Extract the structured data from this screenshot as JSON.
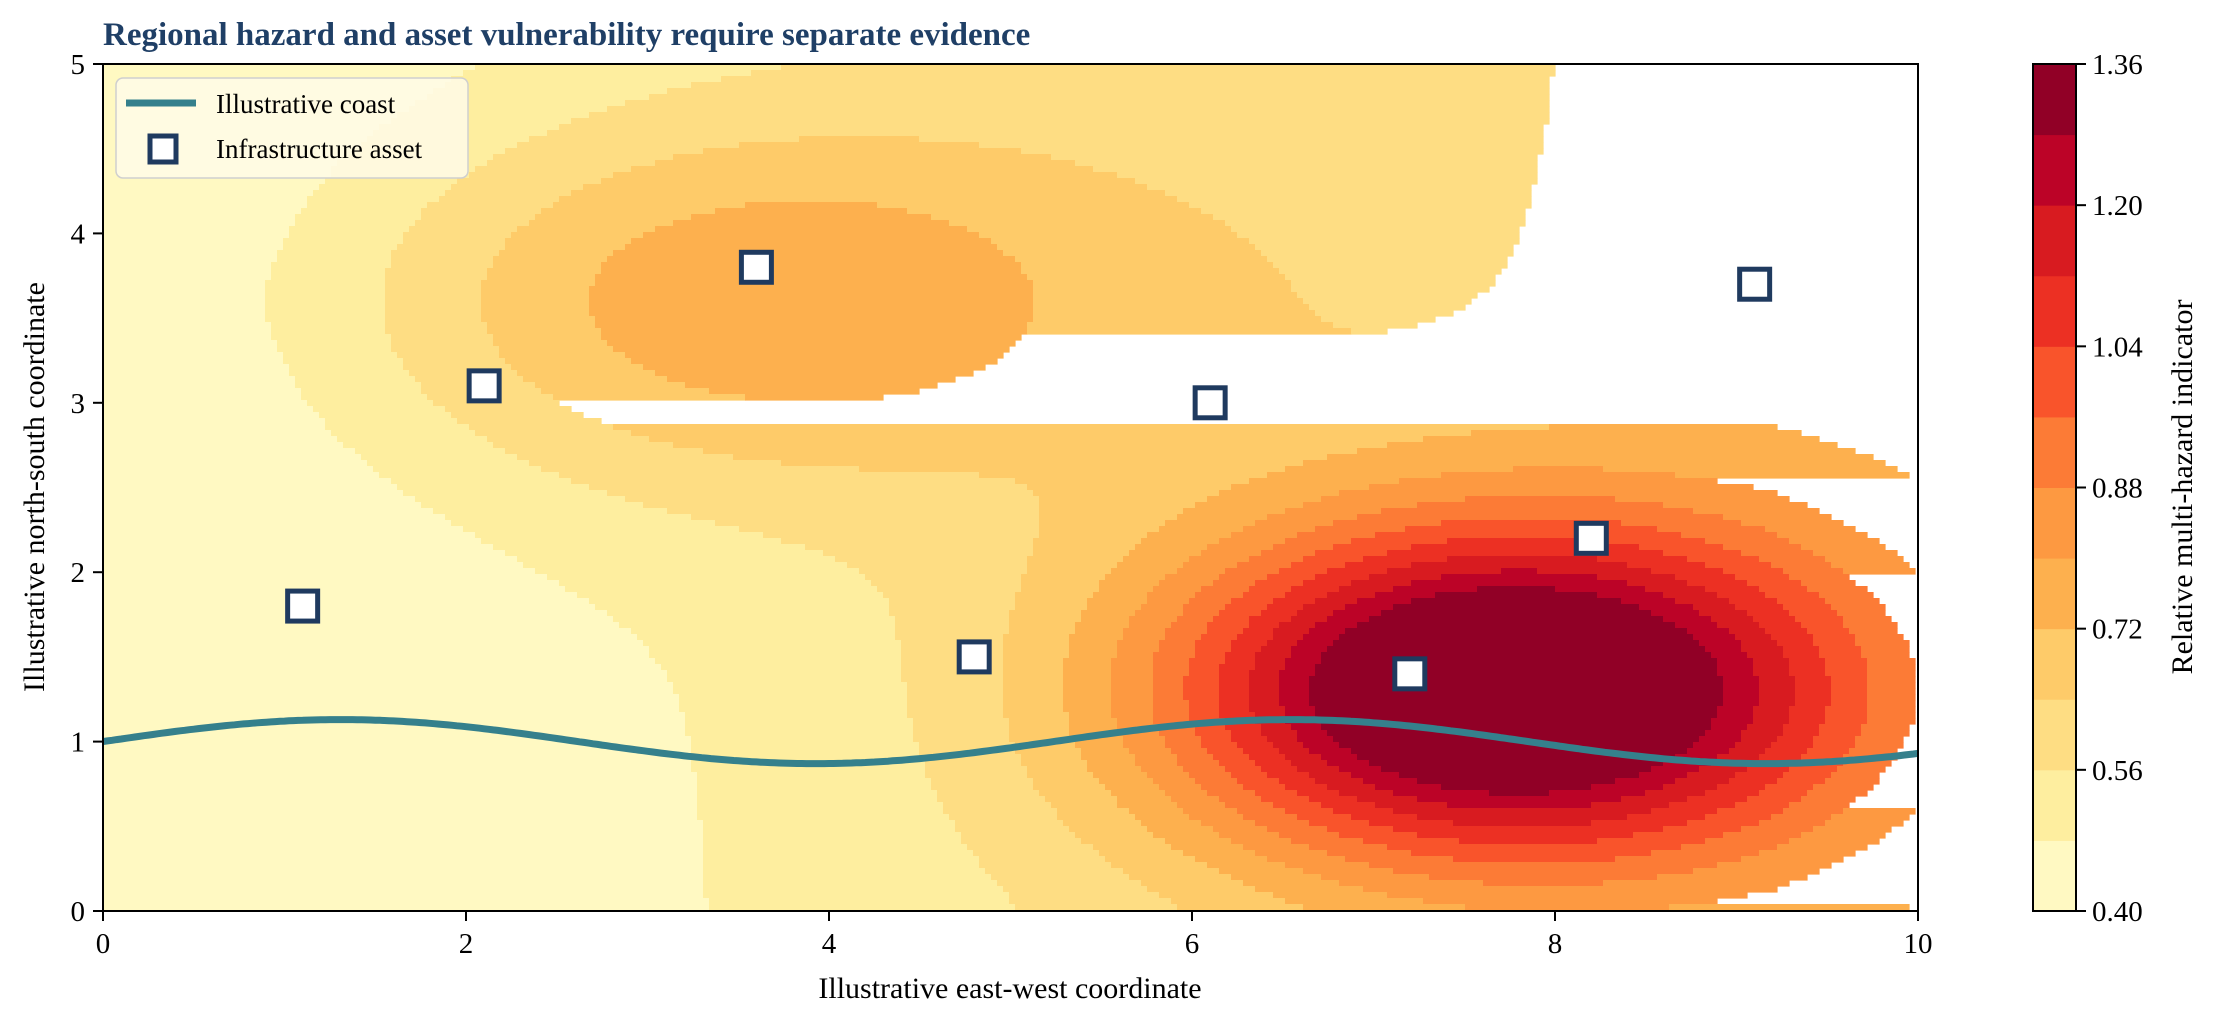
{
  "chart_data": {
    "type": "heatmap",
    "title": "Regional hazard and asset vulnerability require separate evidence",
    "xlabel": "Illustrative east-west coordinate",
    "ylabel": "Illustrative north-south coordinate",
    "xlim": [
      0,
      10
    ],
    "ylim": [
      0,
      5
    ],
    "x_ticks": [
      "0",
      "2",
      "4",
      "6",
      "8",
      "10"
    ],
    "y_ticks": [
      "0",
      "1",
      "2",
      "3",
      "4",
      "5"
    ],
    "grid": false,
    "legend_position": "upper-left",
    "legend": [
      {
        "label": "Illustrative coast",
        "kind": "line",
        "color": "#35808c"
      },
      {
        "label": "Infrastructure asset",
        "kind": "square-marker",
        "color": "#1f3a5f"
      }
    ],
    "colorbar": {
      "label": "Relative multi-hazard indicator",
      "range": [
        0.4,
        1.36
      ],
      "tick_labels": [
        "0.40",
        "0.56",
        "0.72",
        "0.88",
        "1.04",
        "1.20",
        "1.36"
      ],
      "levels": [
        0.4,
        0.48,
        0.56,
        0.64,
        0.72,
        0.8,
        0.88,
        0.96,
        1.04,
        1.12,
        1.2,
        1.28,
        1.36
      ],
      "colors": [
        "#fff9c2",
        "#feee9f",
        "#fedd83",
        "#fecb69",
        "#fdb04e",
        "#fd9941",
        "#fc7b36",
        "#f9542b",
        "#ec3023",
        "#d81b20",
        "#bc0327",
        "#910026"
      ]
    },
    "hazard_field": {
      "base": 0.4,
      "components": [
        {
          "kind": "west-east ramp",
          "x_start": 1.0,
          "x_end": 9.2,
          "amplitude": 0.28
        },
        {
          "kind": "peak",
          "center": [
            7.7,
            1.3
          ],
          "amplitude": 0.95,
          "sigma_x": 1.3,
          "sigma_y": 0.7
        },
        {
          "kind": "peak",
          "center": [
            3.5,
            3.6
          ],
          "amplitude": 0.3,
          "sigma_x": 1.6,
          "sigma_y": 0.8
        }
      ]
    },
    "coast": {
      "name": "Illustrative coast",
      "equation": "y = 1 + 0.13 * sin(1.2 * x)",
      "x_range": [
        0,
        10
      ]
    },
    "series": [
      {
        "name": "Infrastructure asset",
        "marker": "square",
        "points": [
          {
            "x": 1.1,
            "y": 1.8
          },
          {
            "x": 2.1,
            "y": 3.1
          },
          {
            "x": 3.6,
            "y": 3.8
          },
          {
            "x": 4.8,
            "y": 1.5
          },
          {
            "x": 6.1,
            "y": 3.0
          },
          {
            "x": 7.2,
            "y": 1.4
          },
          {
            "x": 8.2,
            "y": 2.2
          },
          {
            "x": 9.1,
            "y": 3.7
          }
        ]
      }
    ]
  }
}
